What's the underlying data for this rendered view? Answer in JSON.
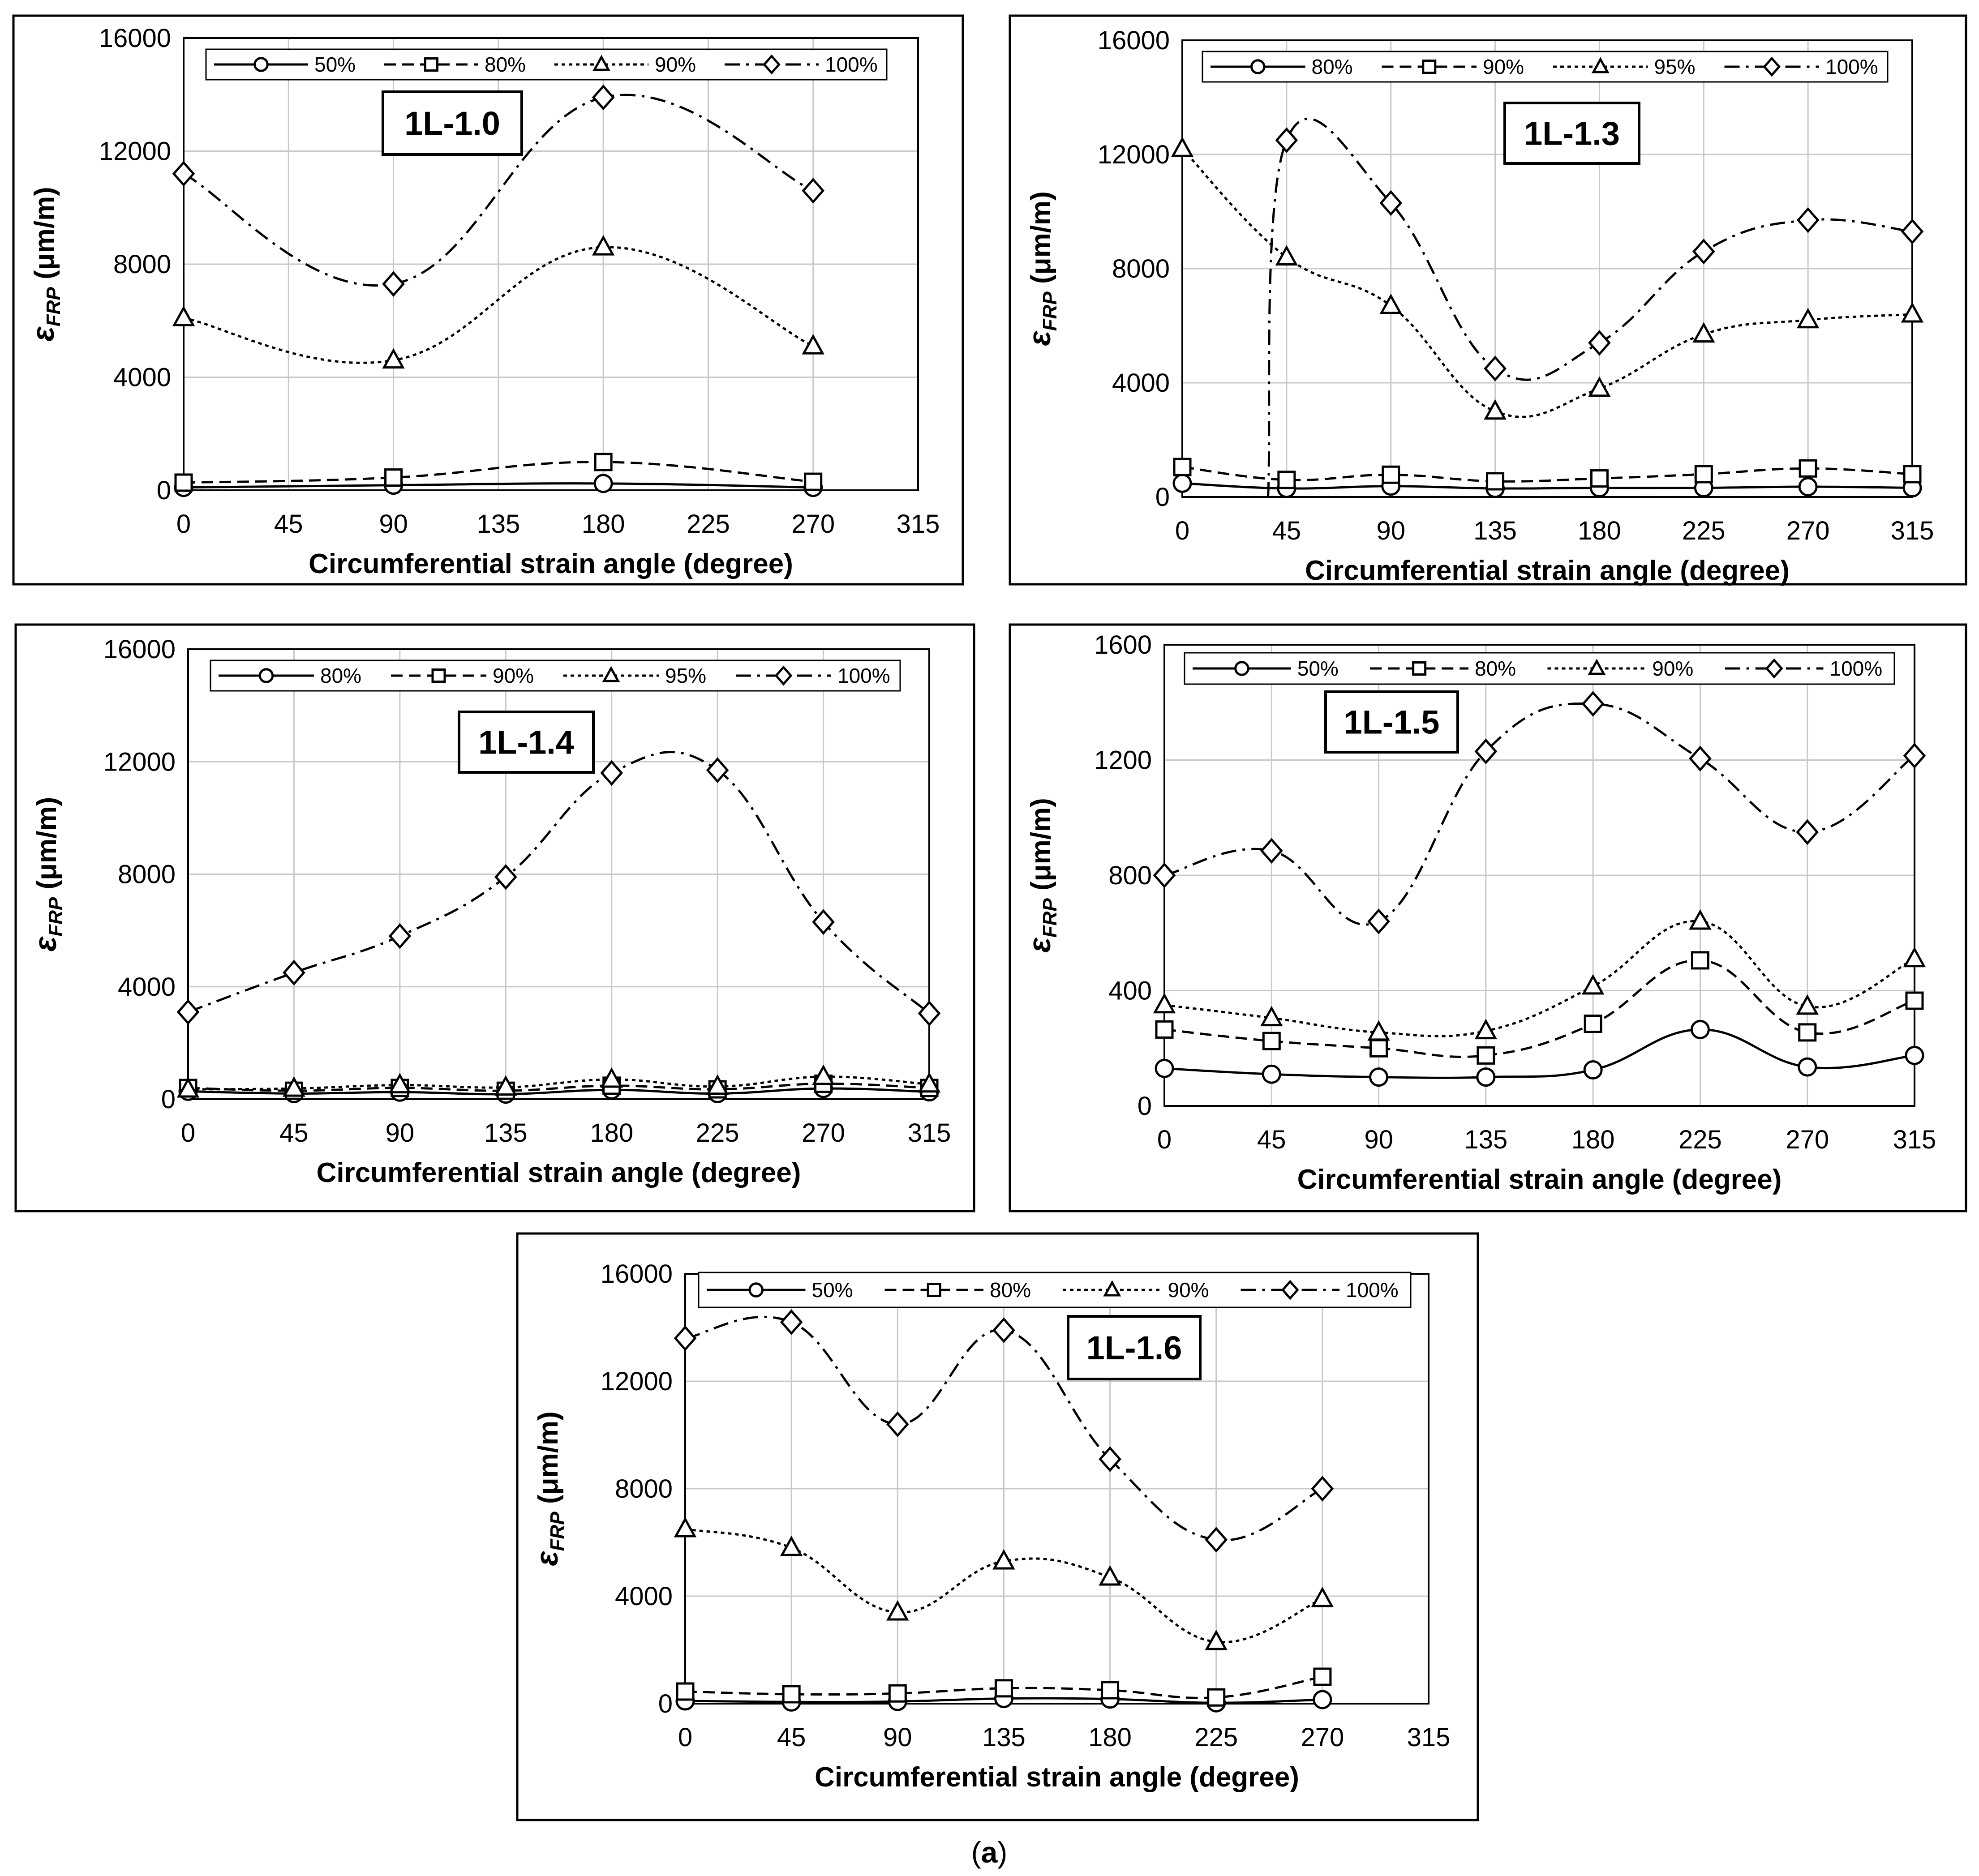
{
  "figure_caption": {
    "open": "(",
    "letter": "a",
    "close": ")"
  },
  "chart_data": [
    {
      "type": "line",
      "panel_tag": "1L-1.0",
      "xlabel": "Circumferential strain angle (degree)",
      "ylabel": {
        "symbol": "ε",
        "subscript": "FRP",
        "unit": " (μm/m)"
      },
      "x_ticks": [
        0,
        45,
        90,
        135,
        180,
        225,
        270,
        315
      ],
      "x_ticks_text": [
        "0",
        "45",
        "90",
        "135",
        "180",
        "225",
        "270",
        "315"
      ],
      "xlim": [
        0,
        315
      ],
      "y_ticks": [
        0,
        4000,
        8000,
        12000,
        16000
      ],
      "y_ticks_text": [
        "0",
        "4000",
        "8000",
        "12000",
        "16000"
      ],
      "ylim": [
        0,
        16000
      ],
      "grid": true,
      "legend_position": "top",
      "series": [
        {
          "name": "50%",
          "marker": "circle",
          "line_style": "solid",
          "x": [
            0,
            90,
            180,
            270
          ],
          "values": [
            100,
            180,
            240,
            100
          ]
        },
        {
          "name": "80%",
          "marker": "square",
          "line_style": "dashed",
          "x": [
            0,
            90,
            180,
            270
          ],
          "values": [
            270,
            450,
            1000,
            300
          ]
        },
        {
          "name": "90%",
          "marker": "triangle",
          "line_style": "dotted",
          "x": [
            0,
            90,
            180,
            270
          ],
          "values": [
            6100,
            4600,
            8600,
            5100
          ]
        },
        {
          "name": "100%",
          "marker": "diamond",
          "line_style": "dash-dot",
          "x": [
            0,
            90,
            180,
            270
          ],
          "values": [
            11200,
            7300,
            13900,
            10600
          ]
        }
      ]
    },
    {
      "type": "line",
      "panel_tag": "1L-1.3",
      "xlabel": "Circumferential strain angle (degree)",
      "ylabel": {
        "symbol": "ε",
        "subscript": "FRP",
        "unit": " (μm/m)"
      },
      "x_ticks": [
        0,
        45,
        90,
        135,
        180,
        225,
        270,
        315
      ],
      "x_ticks_text": [
        "0",
        "45",
        "90",
        "135",
        "180",
        "225",
        "270",
        "315"
      ],
      "xlim": [
        0,
        315
      ],
      "y_ticks": [
        0,
        4000,
        8000,
        12000,
        16000
      ],
      "y_ticks_text": [
        "0",
        "4000",
        "8000",
        "12000",
        "16000"
      ],
      "ylim": [
        0,
        16000
      ],
      "grid": true,
      "legend_position": "top",
      "series": [
        {
          "name": "80%",
          "marker": "circle",
          "line_style": "solid",
          "x": [
            0,
            45,
            90,
            135,
            180,
            225,
            270,
            315
          ],
          "values": [
            480,
            300,
            380,
            300,
            320,
            320,
            360,
            320
          ]
        },
        {
          "name": "90%",
          "marker": "square",
          "line_style": "dashed",
          "x": [
            0,
            45,
            90,
            135,
            180,
            225,
            270,
            315
          ],
          "values": [
            1050,
            600,
            780,
            550,
            650,
            800,
            1000,
            800
          ]
        },
        {
          "name": "95%",
          "marker": "triangle",
          "line_style": "dotted",
          "x": [
            0,
            45,
            90,
            135,
            180,
            225,
            270,
            315
          ],
          "values": [
            12200,
            8400,
            6700,
            3000,
            3800,
            5700,
            6200,
            6400
          ]
        },
        {
          "name": "100%",
          "marker": "diamond",
          "line_style": "dash-dot",
          "x": [
            37,
            45,
            90,
            135,
            180,
            225,
            270,
            315
          ],
          "values": [
            0,
            12500,
            10300,
            4500,
            5400,
            8600,
            9700,
            9300
          ],
          "marker_mask": [
            false,
            true,
            true,
            true,
            true,
            true,
            true,
            true
          ]
        }
      ]
    },
    {
      "type": "line",
      "panel_tag": "1L-1.4",
      "xlabel": "Circumferential strain angle (degree)",
      "ylabel": {
        "symbol": "ε",
        "subscript": "FRP",
        "unit": " (μm/m)"
      },
      "x_ticks": [
        0,
        45,
        90,
        135,
        180,
        225,
        270,
        315
      ],
      "x_ticks_text": [
        "0",
        "45",
        "90",
        "135",
        "180",
        "225",
        "270",
        "315"
      ],
      "xlim": [
        0,
        315
      ],
      "y_ticks": [
        0,
        4000,
        8000,
        12000,
        16000
      ],
      "y_ticks_text": [
        "0",
        "4000",
        "8000",
        "12000",
        "16000"
      ],
      "ylim": [
        0,
        16000
      ],
      "grid": true,
      "legend_position": "top",
      "series": [
        {
          "name": "80%",
          "marker": "circle",
          "line_style": "solid",
          "x": [
            0,
            45,
            90,
            135,
            180,
            225,
            270,
            315
          ],
          "values": [
            280,
            200,
            250,
            180,
            330,
            200,
            380,
            260
          ]
        },
        {
          "name": "90%",
          "marker": "square",
          "line_style": "dashed",
          "x": [
            0,
            45,
            90,
            135,
            180,
            225,
            270,
            315
          ],
          "values": [
            400,
            300,
            400,
            300,
            480,
            350,
            550,
            400
          ]
        },
        {
          "name": "95%",
          "marker": "triangle",
          "line_style": "dotted",
          "x": [
            0,
            45,
            90,
            135,
            180,
            225,
            270,
            315
          ],
          "values": [
            350,
            380,
            500,
            420,
            700,
            450,
            800,
            530
          ]
        },
        {
          "name": "100%",
          "marker": "diamond",
          "line_style": "dash-dot",
          "x": [
            0,
            45,
            90,
            135,
            180,
            225,
            270,
            315
          ],
          "values": [
            3100,
            4500,
            5800,
            7900,
            11600,
            11700,
            6300,
            3050
          ]
        }
      ]
    },
    {
      "type": "line",
      "panel_tag": "1L-1.5",
      "xlabel": "Circumferential strain angle (degree)",
      "ylabel": {
        "symbol": "ε",
        "subscript": "FRP",
        "unit": " (μm/m)"
      },
      "x_ticks": [
        0,
        45,
        90,
        135,
        180,
        225,
        270,
        315
      ],
      "x_ticks_text": [
        "0",
        "45",
        "90",
        "135",
        "180",
        "225",
        "270",
        "315"
      ],
      "xlim": [
        0,
        315
      ],
      "y_ticks": [
        0,
        400,
        800,
        1200,
        1600
      ],
      "y_ticks_text": [
        "0",
        "400",
        "800",
        "1200",
        "1600"
      ],
      "ylim": [
        0,
        1600
      ],
      "grid": true,
      "legend_position": "top",
      "series": [
        {
          "name": "50%",
          "marker": "circle",
          "line_style": "solid",
          "x": [
            0,
            45,
            90,
            135,
            180,
            225,
            270,
            315
          ],
          "values": [
            130,
            110,
            100,
            100,
            125,
            265,
            135,
            175
          ]
        },
        {
          "name": "80%",
          "marker": "square",
          "line_style": "dashed",
          "x": [
            0,
            45,
            90,
            135,
            180,
            225,
            270,
            315
          ],
          "values": [
            265,
            225,
            200,
            175,
            285,
            505,
            255,
            365
          ]
        },
        {
          "name": "90%",
          "marker": "triangle",
          "line_style": "dotted",
          "x": [
            0,
            45,
            90,
            135,
            180,
            225,
            270,
            315
          ],
          "values": [
            350,
            305,
            255,
            260,
            415,
            640,
            345,
            510
          ]
        },
        {
          "name": "100%",
          "marker": "diamond",
          "line_style": "dash-dot",
          "x": [
            0,
            45,
            90,
            135,
            180,
            225,
            270,
            315
          ],
          "values": [
            800,
            885,
            640,
            1230,
            1395,
            1205,
            950,
            1215
          ]
        }
      ]
    },
    {
      "type": "line",
      "panel_tag": "1L-1.6",
      "xlabel": "Circumferential strain angle (degree)",
      "ylabel": {
        "symbol": "ε",
        "subscript": "FRP",
        "unit": " (μm/m)"
      },
      "x_ticks": [
        0,
        45,
        90,
        135,
        180,
        225,
        270,
        315
      ],
      "x_ticks_text": [
        "0",
        "45",
        "90",
        "135",
        "180",
        "225",
        "270",
        "315"
      ],
      "xlim": [
        0,
        315
      ],
      "y_ticks": [
        0,
        4000,
        8000,
        12000,
        16000
      ],
      "y_ticks_text": [
        "0",
        "4000",
        "8000",
        "12000",
        "16000"
      ],
      "ylim": [
        0,
        16000
      ],
      "grid": true,
      "legend_position": "top",
      "series": [
        {
          "name": "50%",
          "marker": "circle",
          "line_style": "solid",
          "x": [
            0,
            45,
            90,
            135,
            180,
            225,
            270
          ],
          "values": [
            100,
            60,
            80,
            190,
            170,
            30,
            150
          ]
        },
        {
          "name": "80%",
          "marker": "square",
          "line_style": "dashed",
          "x": [
            0,
            45,
            90,
            135,
            180,
            225,
            270
          ],
          "values": [
            450,
            350,
            380,
            570,
            500,
            230,
            1000
          ]
        },
        {
          "name": "90%",
          "marker": "triangle",
          "line_style": "dotted",
          "x": [
            0,
            45,
            90,
            135,
            180,
            225,
            270
          ],
          "values": [
            6500,
            5800,
            3400,
            5300,
            4700,
            2300,
            3900
          ]
        },
        {
          "name": "100%",
          "marker": "diamond",
          "line_style": "dash-dot",
          "x": [
            0,
            45,
            90,
            135,
            180,
            225,
            270
          ],
          "values": [
            13600,
            14200,
            10400,
            13900,
            9100,
            6100,
            8000
          ]
        }
      ]
    }
  ]
}
